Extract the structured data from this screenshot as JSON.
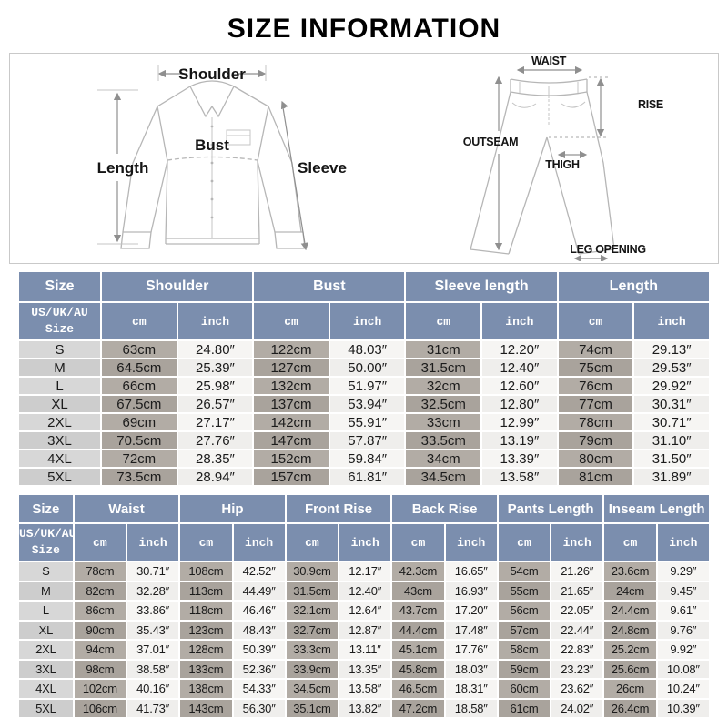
{
  "title": "SIZE INFORMATION",
  "diagram": {
    "shirt_labels": {
      "shoulder": "Shoulder",
      "bust": "Bust",
      "length": "Length",
      "sleeve": "Sleeve"
    },
    "pants_labels": {
      "waist": "WAIST",
      "rise": "RISE",
      "outseam": "OUTSEAM",
      "thigh": "THIGH",
      "leg_opening": "LEG OPENING"
    }
  },
  "colors": {
    "header_bg": "#7b8eae",
    "header_text": "#ffffff",
    "size_col_bg": "#d7d7d7",
    "cm_col_bg": "#b2aca5",
    "inch_col_bg": "#f6f5f3",
    "body_text": "#1b1b1b"
  },
  "shirt_table": {
    "title_col": "Size",
    "sub_title_col": "US/UK/AU\nSize",
    "unit_cm": "cm",
    "unit_inch": "inch",
    "groups": [
      "Shoulder",
      "Bust",
      "Sleeve length",
      "Length"
    ],
    "rows": [
      {
        "size": "S",
        "values": [
          "63cm",
          "24.80″",
          "122cm",
          "48.03″",
          "31cm",
          "12.20″",
          "74cm",
          "29.13″"
        ]
      },
      {
        "size": "M",
        "values": [
          "64.5cm",
          "25.39″",
          "127cm",
          "50.00″",
          "31.5cm",
          "12.40″",
          "75cm",
          "29.53″"
        ]
      },
      {
        "size": "L",
        "values": [
          "66cm",
          "25.98″",
          "132cm",
          "51.97″",
          "32cm",
          "12.60″",
          "76cm",
          "29.92″"
        ]
      },
      {
        "size": "XL",
        "values": [
          "67.5cm",
          "26.57″",
          "137cm",
          "53.94″",
          "32.5cm",
          "12.80″",
          "77cm",
          "30.31″"
        ]
      },
      {
        "size": "2XL",
        "values": [
          "69cm",
          "27.17″",
          "142cm",
          "55.91″",
          "33cm",
          "12.99″",
          "78cm",
          "30.71″"
        ]
      },
      {
        "size": "3XL",
        "values": [
          "70.5cm",
          "27.76″",
          "147cm",
          "57.87″",
          "33.5cm",
          "13.19″",
          "79cm",
          "31.10″"
        ]
      },
      {
        "size": "4XL",
        "values": [
          "72cm",
          "28.35″",
          "152cm",
          "59.84″",
          "34cm",
          "13.39″",
          "80cm",
          "31.50″"
        ]
      },
      {
        "size": "5XL",
        "values": [
          "73.5cm",
          "28.94″",
          "157cm",
          "61.81″",
          "34.5cm",
          "13.58″",
          "81cm",
          "31.89″"
        ]
      }
    ]
  },
  "pants_table": {
    "title_col": "Size",
    "sub_title_col": "US/UK/AU\nSize",
    "unit_cm": "cm",
    "unit_inch": "inch",
    "groups": [
      "Waist",
      "Hip",
      "Front Rise",
      "Back Rise",
      "Pants Length",
      "Inseam Length"
    ],
    "rows": [
      {
        "size": "S",
        "values": [
          "78cm",
          "30.71″",
          "108cm",
          "42.52″",
          "30.9cm",
          "12.17″",
          "42.3cm",
          "16.65″",
          "54cm",
          "21.26″",
          "23.6cm",
          "9.29″"
        ]
      },
      {
        "size": "M",
        "values": [
          "82cm",
          "32.28″",
          "113cm",
          "44.49″",
          "31.5cm",
          "12.40″",
          "43cm",
          "16.93″",
          "55cm",
          "21.65″",
          "24cm",
          "9.45″"
        ]
      },
      {
        "size": "L",
        "values": [
          "86cm",
          "33.86″",
          "118cm",
          "46.46″",
          "32.1cm",
          "12.64″",
          "43.7cm",
          "17.20″",
          "56cm",
          "22.05″",
          "24.4cm",
          "9.61″"
        ]
      },
      {
        "size": "XL",
        "values": [
          "90cm",
          "35.43″",
          "123cm",
          "48.43″",
          "32.7cm",
          "12.87″",
          "44.4cm",
          "17.48″",
          "57cm",
          "22.44″",
          "24.8cm",
          "9.76″"
        ]
      },
      {
        "size": "2XL",
        "values": [
          "94cm",
          "37.01″",
          "128cm",
          "50.39″",
          "33.3cm",
          "13.11″",
          "45.1cm",
          "17.76″",
          "58cm",
          "22.83″",
          "25.2cm",
          "9.92″"
        ]
      },
      {
        "size": "3XL",
        "values": [
          "98cm",
          "38.58″",
          "133cm",
          "52.36″",
          "33.9cm",
          "13.35″",
          "45.8cm",
          "18.03″",
          "59cm",
          "23.23″",
          "25.6cm",
          "10.08″"
        ]
      },
      {
        "size": "4XL",
        "values": [
          "102cm",
          "40.16″",
          "138cm",
          "54.33″",
          "34.5cm",
          "13.58″",
          "46.5cm",
          "18.31″",
          "60cm",
          "23.62″",
          "26cm",
          "10.24″"
        ]
      },
      {
        "size": "5XL",
        "values": [
          "106cm",
          "41.73″",
          "143cm",
          "56.30″",
          "35.1cm",
          "13.82″",
          "47.2cm",
          "18.58″",
          "61cm",
          "24.02″",
          "26.4cm",
          "10.39″"
        ]
      }
    ]
  }
}
